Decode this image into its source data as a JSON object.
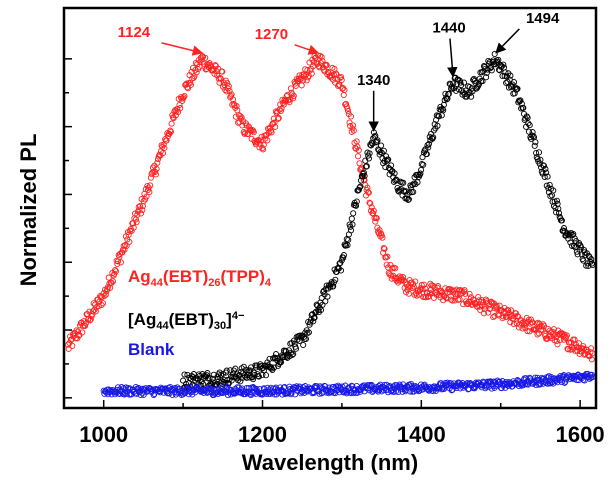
{
  "chart_data": {
    "type": "scatter",
    "xlabel": "Wavelength (nm)",
    "ylabel": "Normalized PL",
    "xlim": [
      950,
      1620
    ],
    "ylim": [
      -0.03,
      1.15
    ],
    "xticks": [
      "1000",
      "1200",
      "1400",
      "1600"
    ],
    "grid": false,
    "series": [
      {
        "name_parts": [
          {
            "t": "Ag"
          },
          {
            "t": "44",
            "sub": true
          },
          {
            "t": "(EBT)"
          },
          {
            "t": "26",
            "sub": true
          },
          {
            "t": "(TPP)"
          },
          {
            "t": "4",
            "sub": true
          }
        ],
        "color": "#ff2222",
        "x": [
          955,
          1000,
          1050,
          1100,
          1124,
          1150,
          1175,
          1200,
          1230,
          1270,
          1300,
          1330,
          1360,
          1380,
          1400,
          1450,
          1500,
          1550,
          1600,
          1620
        ],
        "y": [
          0.15,
          0.3,
          0.58,
          0.9,
          1.0,
          0.94,
          0.8,
          0.75,
          0.88,
          1.0,
          0.93,
          0.62,
          0.38,
          0.33,
          0.32,
          0.3,
          0.25,
          0.2,
          0.15,
          0.12
        ]
      },
      {
        "name_parts": [
          {
            "t": "[Ag"
          },
          {
            "t": "44",
            "sub": true
          },
          {
            "t": "(EBT)"
          },
          {
            "t": "30",
            "sub": true
          },
          {
            "t": "]"
          },
          {
            "t": "4−",
            "sup": true
          }
        ],
        "color": "#000000",
        "x": [
          1100,
          1150,
          1200,
          1250,
          1300,
          1320,
          1340,
          1355,
          1370,
          1385,
          1400,
          1420,
          1440,
          1460,
          1475,
          1494,
          1520,
          1550,
          1580,
          1610,
          1620
        ],
        "y": [
          0.05,
          0.06,
          0.08,
          0.17,
          0.4,
          0.6,
          0.77,
          0.7,
          0.63,
          0.6,
          0.68,
          0.82,
          0.93,
          0.9,
          0.95,
          1.0,
          0.9,
          0.7,
          0.5,
          0.4,
          0.37
        ]
      },
      {
        "name_parts": [
          {
            "t": "Blank"
          }
        ],
        "color": "#1818e6",
        "x": [
          1000,
          1100,
          1200,
          1300,
          1400,
          1500,
          1550,
          1600,
          1620
        ],
        "y": [
          0.02,
          0.02,
          0.02,
          0.025,
          0.03,
          0.04,
          0.05,
          0.06,
          0.07
        ]
      }
    ],
    "annotations": [
      {
        "text": "1124",
        "x": 1124,
        "y": 1.0,
        "color": "#ff2222"
      },
      {
        "text": "1270",
        "x": 1270,
        "y": 1.0,
        "color": "#ff2222"
      },
      {
        "text": "1340",
        "x": 1340,
        "y": 0.77,
        "color": "#000000"
      },
      {
        "text": "1440",
        "x": 1440,
        "y": 0.93,
        "color": "#000000"
      },
      {
        "text": "1494",
        "x": 1494,
        "y": 1.0,
        "color": "#000000"
      }
    ],
    "legend_placement": "lower-left"
  }
}
